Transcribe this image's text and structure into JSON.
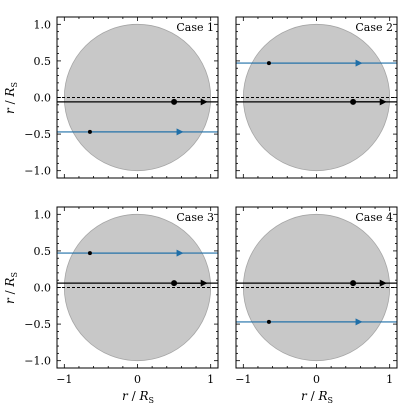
{
  "chart_data": {
    "type": "scatter",
    "layout": "2x2 grid of panels with shared axes",
    "xlabel": "r / R_S",
    "ylabel": "r / R_S",
    "xlim": [
      -1.1,
      1.1
    ],
    "ylim": [
      -1.1,
      1.1
    ],
    "xticks": [
      -1,
      0,
      1
    ],
    "yticks": [
      -1.0,
      -0.5,
      0.0,
      0.5,
      1.0
    ],
    "ytick_labels": [
      "−1.0",
      "−0.5",
      "0.0",
      "0.5",
      "1.0"
    ],
    "xtick_labels": [
      "−1",
      "0",
      "1"
    ],
    "grid": false,
    "disk": {
      "center": [
        0,
        0
      ],
      "radius": 1.0,
      "fill": "#c8c8c8",
      "stroke": "#a6a6a6"
    },
    "colors": {
      "planet_track": "#000000",
      "spot_track": "#1f6fa8",
      "center_line": "#000000"
    },
    "panels": [
      {
        "label": "Case 1",
        "planet": {
          "y": -0.06,
          "dot_x": 0.5,
          "arrow_x": 0.95
        },
        "spot": {
          "y": -0.47,
          "dot_x": -0.65,
          "arrow_x": 0.62
        },
        "dashed_y": 0.0
      },
      {
        "label": "Case 2",
        "planet": {
          "y": -0.06,
          "dot_x": 0.5,
          "arrow_x": 0.95
        },
        "spot": {
          "y": 0.47,
          "dot_x": -0.65,
          "arrow_x": 0.62
        },
        "dashed_y": 0.0
      },
      {
        "label": "Case 3",
        "planet": {
          "y": 0.06,
          "dot_x": 0.5,
          "arrow_x": 0.95
        },
        "spot": {
          "y": 0.47,
          "dot_x": -0.65,
          "arrow_x": 0.62
        },
        "dashed_y": 0.0
      },
      {
        "label": "Case 4",
        "planet": {
          "y": 0.06,
          "dot_x": 0.5,
          "arrow_x": 0.95
        },
        "spot": {
          "y": -0.47,
          "dot_x": -0.65,
          "arrow_x": 0.62
        },
        "dashed_y": 0.0
      }
    ]
  }
}
